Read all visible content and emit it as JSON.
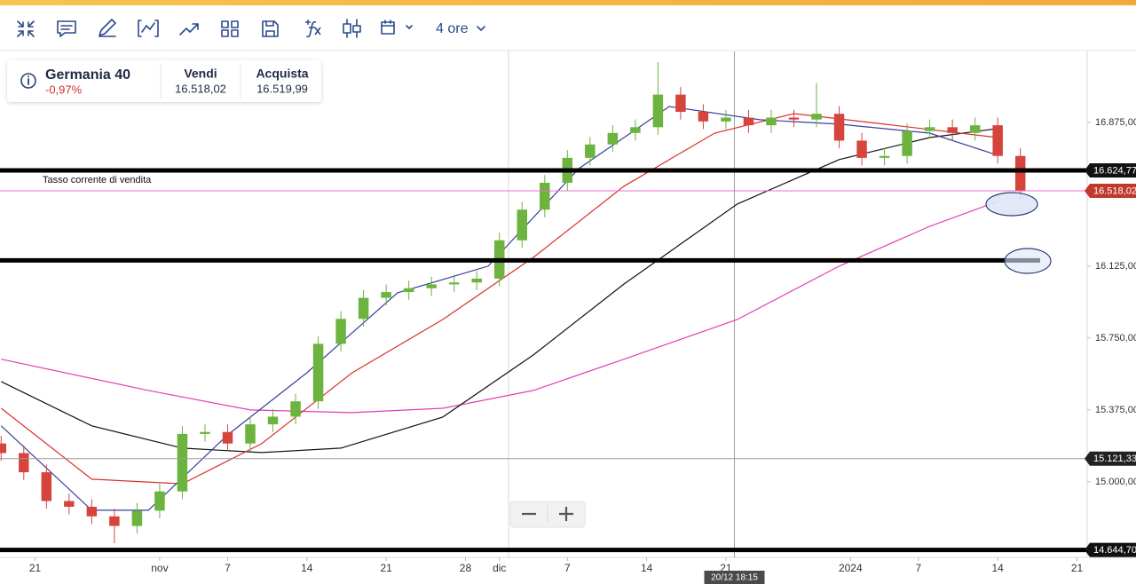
{
  "toolbar": {
    "timeframe": "4 ore"
  },
  "instrument": {
    "name": "Germania 40",
    "change": "-0,97%",
    "sell_label": "Vendi",
    "sell": "16.518,02",
    "buy_label": "Acquista",
    "buy": "16.519,99"
  },
  "chart_data": {
    "type": "candlestick",
    "xlim": [
      17.9,
      113.9
    ],
    "ylim": [
      14606,
      17245
    ],
    "xticks": [
      {
        "value": 21,
        "label": "21"
      },
      {
        "value": 32,
        "label": "nov"
      },
      {
        "value": 38,
        "label": "7"
      },
      {
        "value": 45,
        "label": "14"
      },
      {
        "value": 52,
        "label": "21"
      },
      {
        "value": 59,
        "label": "28"
      },
      {
        "value": 62,
        "label": "dic"
      },
      {
        "value": 68,
        "label": "7"
      },
      {
        "value": 75,
        "label": "14"
      },
      {
        "value": 82,
        "label": "21"
      },
      {
        "value": 93,
        "label": "2024"
      },
      {
        "value": 99,
        "label": "7"
      },
      {
        "value": 106,
        "label": "14"
      },
      {
        "value": 113,
        "label": "21"
      }
    ],
    "yticks": [
      {
        "value": 16875,
        "label": "16.875,00"
      },
      {
        "value": 16125,
        "label": "16.125,00"
      },
      {
        "value": 15750,
        "label": "15.750,00"
      },
      {
        "value": 15375,
        "label": "15.375,00"
      },
      {
        "value": 15000,
        "label": "15.000,00"
      }
    ],
    "up_color": "#6cb33f",
    "down_color": "#d6453d",
    "candles": {
      "x": [
        18,
        20,
        22,
        24,
        26,
        28,
        30,
        32,
        34,
        36,
        38,
        40,
        42,
        44,
        46,
        48,
        50,
        52,
        54,
        56,
        58,
        60,
        62,
        64,
        66,
        68,
        70,
        72,
        74,
        76,
        78,
        80,
        82,
        84,
        86,
        88,
        90,
        92,
        94,
        96,
        98,
        100,
        102,
        104,
        106,
        108
      ],
      "open": [
        15200,
        15150,
        15050,
        14900,
        14870,
        14820,
        14770,
        14850,
        14950,
        15250,
        15260,
        15200,
        15300,
        15340,
        15420,
        15720,
        15850,
        15960,
        15990,
        16010,
        16030,
        16040,
        16060,
        16260,
        16420,
        16560,
        16690,
        16760,
        16820,
        16850,
        17020,
        16930,
        16880,
        16900,
        16860,
        16900,
        16890,
        16920,
        16780,
        16690,
        16700,
        16830,
        16850,
        16820,
        16860,
        16700
      ],
      "high": [
        15240,
        15190,
        15090,
        14940,
        14910,
        14860,
        14890,
        14990,
        15290,
        15300,
        15300,
        15340,
        15380,
        15460,
        15760,
        15890,
        16000,
        16030,
        16050,
        16070,
        16080,
        16100,
        16300,
        16460,
        16600,
        16730,
        16800,
        16860,
        16890,
        17190,
        17060,
        16970,
        16940,
        16940,
        16940,
        16940,
        17080,
        16960,
        16820,
        16740,
        16870,
        16890,
        16890,
        16900,
        16900,
        16740
      ],
      "low": [
        15110,
        15010,
        14860,
        14830,
        14780,
        14680,
        14730,
        14810,
        14910,
        15210,
        15160,
        15160,
        15260,
        15300,
        15380,
        15680,
        15810,
        15920,
        15950,
        15970,
        15990,
        16000,
        16020,
        16220,
        16380,
        16520,
        16650,
        16720,
        16780,
        16810,
        16890,
        16840,
        16840,
        16820,
        16820,
        16850,
        16850,
        16740,
        16650,
        16650,
        16660,
        16790,
        16780,
        16780,
        16660,
        16478
      ],
      "close": [
        15150,
        15050,
        14900,
        14870,
        14820,
        14770,
        14850,
        14950,
        15250,
        15260,
        15200,
        15300,
        15340,
        15420,
        15720,
        15850,
        15960,
        15990,
        16010,
        16030,
        16040,
        16060,
        16260,
        16420,
        16560,
        16690,
        16760,
        16820,
        16850,
        17020,
        16930,
        16880,
        16900,
        16860,
        16900,
        16890,
        16920,
        16780,
        16690,
        16700,
        16830,
        16850,
        16820,
        16860,
        16700,
        16518
      ]
    },
    "series": [
      {
        "color": "#e03fb5",
        "x": [
          18,
          31,
          40,
          49,
          57,
          65,
          73,
          83,
          92,
          100,
          106
        ],
        "values": [
          15640,
          15477,
          15375,
          15361,
          15384,
          15477,
          15640,
          15847,
          16125,
          16333,
          16463
        ]
      },
      {
        "color": "#111111",
        "x": [
          18,
          26,
          34,
          41,
          48,
          57,
          65,
          73,
          83,
          92,
          100,
          106
        ],
        "values": [
          15523,
          15292,
          15176,
          15153,
          15176,
          15338,
          15662,
          16032,
          16449,
          16681,
          16796,
          16843
        ]
      },
      {
        "color": "#d9302b",
        "x": [
          18,
          26,
          34,
          41,
          49,
          57,
          65,
          73,
          81,
          88,
          96,
          106
        ],
        "values": [
          15384,
          15014,
          14990,
          15199,
          15569,
          15847,
          16171,
          16542,
          16819,
          16921,
          16866,
          16796
        ]
      },
      {
        "color": "#3a3f9a",
        "x": [
          18,
          26,
          31,
          38,
          45,
          53,
          61,
          69,
          77,
          85,
          92,
          100,
          106
        ],
        "values": [
          15292,
          14852,
          14852,
          15245,
          15569,
          15986,
          16125,
          16634,
          16958,
          16889,
          16866,
          16819,
          16704
        ]
      }
    ],
    "price_lines": [
      {
        "value": 16624.77,
        "label": "16.624,77",
        "color": "#000000",
        "style": "heavy",
        "label_color": "#111111"
      },
      {
        "value": 16518.02,
        "label": "16.518,02",
        "name": "Tasso corrente di vendita",
        "color": "#e86fd0",
        "style": "thin",
        "label_color": "#c0392b"
      },
      {
        "value": 16155,
        "color": "#000000",
        "style": "heavy"
      },
      {
        "value": 15121.33,
        "label": "15.121,33",
        "color": "#9a9a9a",
        "style": "thin",
        "label_color": "#222222"
      },
      {
        "value": 14644.7,
        "label": "14.644,70",
        "color": "#000000",
        "style": "heavy",
        "label_color": "#111111"
      }
    ],
    "crosshair": {
      "x": 82.75,
      "x_label": "20/12 18:15"
    }
  }
}
